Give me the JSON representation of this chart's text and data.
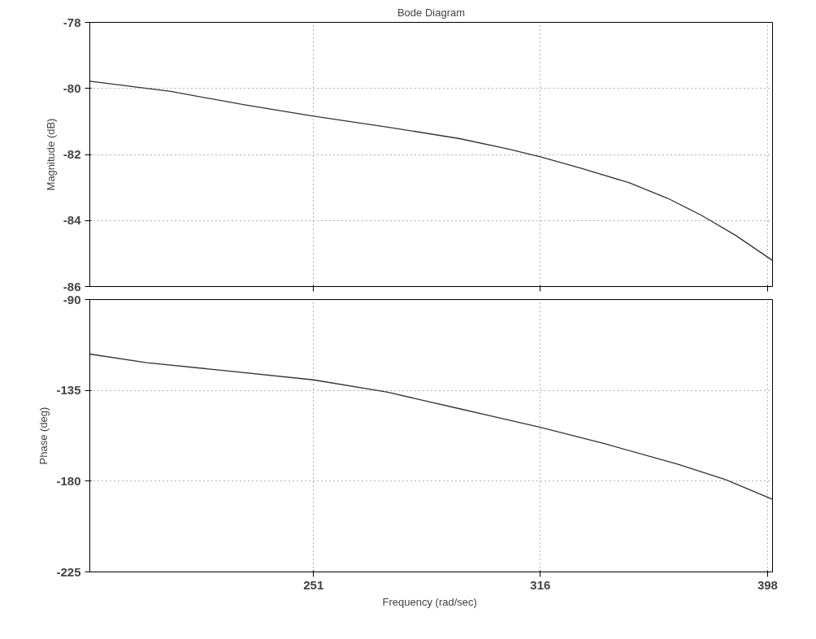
{
  "chart_data": [
    {
      "type": "line",
      "title": "Bode Diagram",
      "ylabel": "Magnitude (dB)",
      "log": "x",
      "grid": true,
      "tick_labels": "y",
      "xlim": [
        200,
        400
      ],
      "xticks": [
        251,
        316,
        398
      ],
      "ylim": [
        -86,
        -78
      ],
      "yticks": [
        -86,
        -84,
        -82,
        -80,
        -78
      ],
      "series": [
        {
          "color": "#333333",
          "x": [
            200,
            217.1,
            233.7,
            251,
            270.6,
            291.1,
            305.7,
            316,
            329.5,
            345.9,
            359.7,
            372.1,
            385.1,
            400
          ],
          "values": [
            -79.78,
            -80.09,
            -80.49,
            -80.84,
            -81.17,
            -81.52,
            -81.83,
            -82.07,
            -82.42,
            -82.86,
            -83.33,
            -83.84,
            -84.44,
            -85.21
          ]
        }
      ]
    },
    {
      "type": "line",
      "xlabel": "Frequency  (rad/sec)",
      "ylabel": "Phase (deg)",
      "log": "x",
      "grid": true,
      "xlim": [
        200,
        400
      ],
      "xticks": [
        251,
        316,
        398
      ],
      "ylim": [
        -225,
        -90
      ],
      "yticks": [
        -225,
        -180,
        -135,
        -90
      ],
      "series": [
        {
          "color": "#333333",
          "x": [
            200,
            211.9,
            228,
            251,
            270.6,
            291.1,
            316,
            337.5,
            363.2,
            381.3,
            400
          ],
          "values": [
            -117,
            -121.3,
            -124.9,
            -129.8,
            -135.9,
            -144.1,
            -153.3,
            -161.5,
            -171.6,
            -179.2,
            -189
          ]
        }
      ]
    }
  ]
}
